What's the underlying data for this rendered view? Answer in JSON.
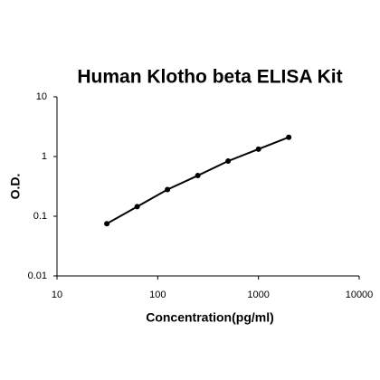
{
  "chart_data": {
    "type": "line",
    "title": "Human Klotho beta ELISA Kit",
    "x_label": "Concentration(pg/ml)",
    "y_label": "O.D.",
    "xscale": "log",
    "yscale": "log",
    "xlim": [
      10,
      10000
    ],
    "ylim": [
      0.01,
      10
    ],
    "xticks": [
      10,
      100,
      1000,
      10000
    ],
    "yticks": [
      0.01,
      0.1,
      1,
      10
    ],
    "series": [
      {
        "color": "#000000",
        "x": [
          31.25,
          62.5,
          125,
          250,
          500,
          1000,
          2000
        ],
        "values": [
          0.075,
          0.145,
          0.28,
          0.48,
          0.84,
          1.33,
          2.1
        ]
      }
    ]
  }
}
